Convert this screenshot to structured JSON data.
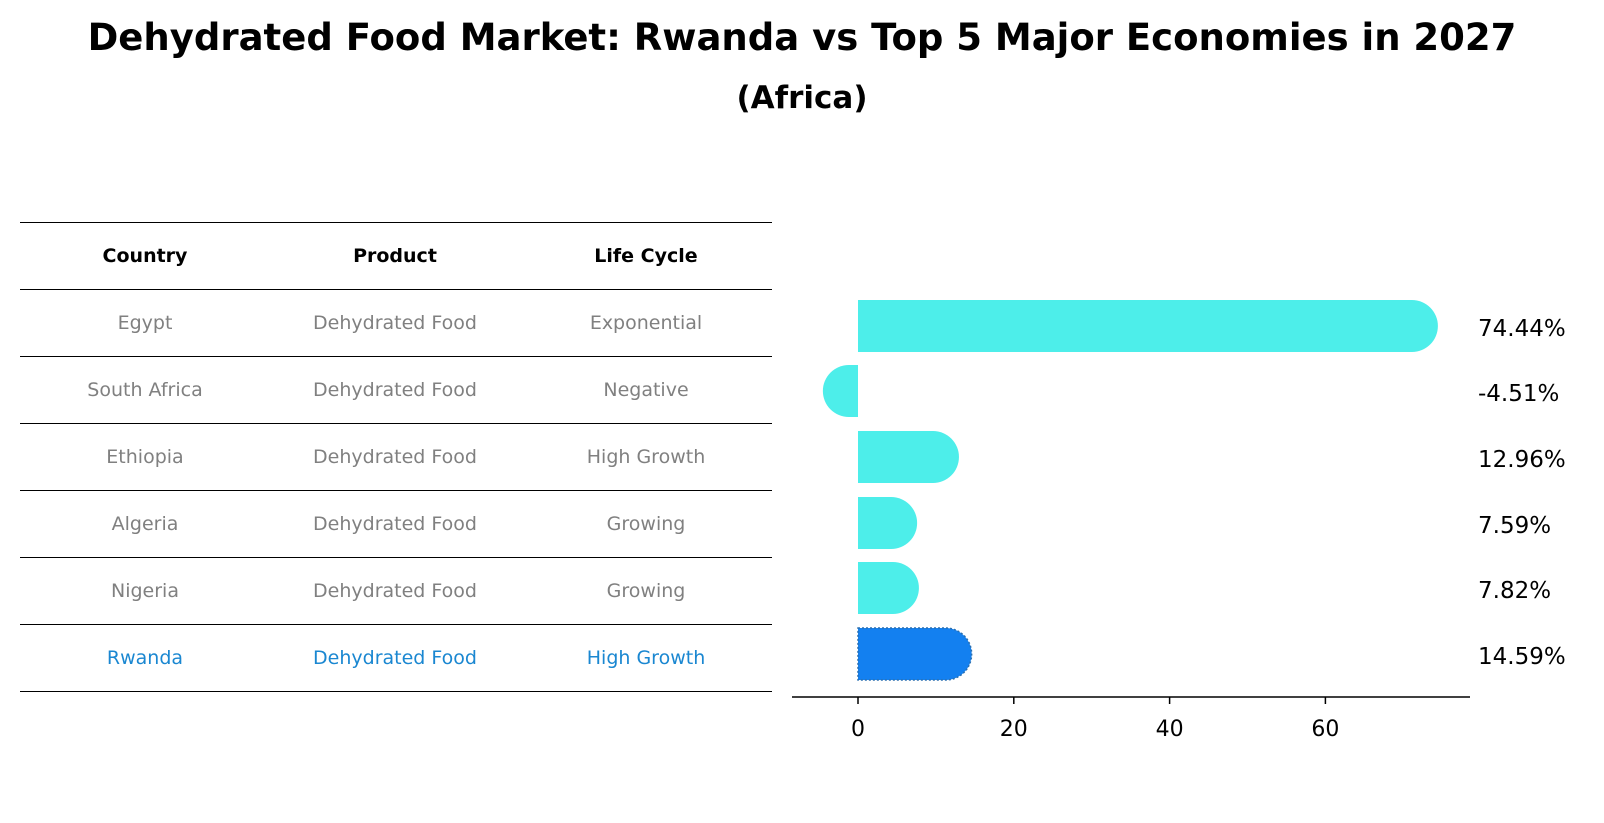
{
  "title": "Dehydrated Food Market: Rwanda vs Top 5 Major Economies in 2027",
  "subtitle": "(Africa)",
  "colors": {
    "bar": "#4ded ea",
    "bar_main": "#4deeea",
    "highlight_bar": "#1380f0",
    "highlight_text": "#1a87d1",
    "table_text": "#808080"
  },
  "table": {
    "headers": [
      "Country",
      "Product",
      "Life Cycle"
    ],
    "rows": [
      {
        "country": "Egypt",
        "product": "Dehydrated Food",
        "life_cycle": "Exponential"
      },
      {
        "country": "South Africa",
        "product": "Dehydrated Food",
        "life_cycle": "Negative"
      },
      {
        "country": "Ethiopia",
        "product": "Dehydrated Food",
        "life_cycle": "High Growth"
      },
      {
        "country": "Algeria",
        "product": "Dehydrated Food",
        "life_cycle": "Growing"
      },
      {
        "country": "Nigeria",
        "product": "Dehydrated Food",
        "life_cycle": "Growing"
      },
      {
        "country": "Rwanda",
        "product": "Dehydrated Food",
        "life_cycle": "High Growth"
      }
    ]
  },
  "chart_data": {
    "type": "bar",
    "orientation": "horizontal",
    "title": "Dehydrated Food Market: Rwanda vs Top 5 Major Economies in 2027",
    "subtitle": "(Africa)",
    "categories": [
      "Egypt",
      "South Africa",
      "Ethiopia",
      "Algeria",
      "Nigeria",
      "Rwanda"
    ],
    "values": [
      74.44,
      -4.51,
      12.96,
      7.59,
      7.82,
      14.59
    ],
    "value_labels": [
      "74.44%",
      "-4.51%",
      "12.96%",
      "7.59%",
      "7.82%",
      "14.59%"
    ],
    "highlight": "Rwanda",
    "xticks": [
      0,
      20,
      40,
      60
    ],
    "xtick_labels": [
      "0",
      "20",
      "40",
      "60"
    ],
    "xlim": [
      -8.5,
      78
    ],
    "xlabel": "",
    "ylabel": "",
    "grid": false,
    "legend": "none"
  }
}
